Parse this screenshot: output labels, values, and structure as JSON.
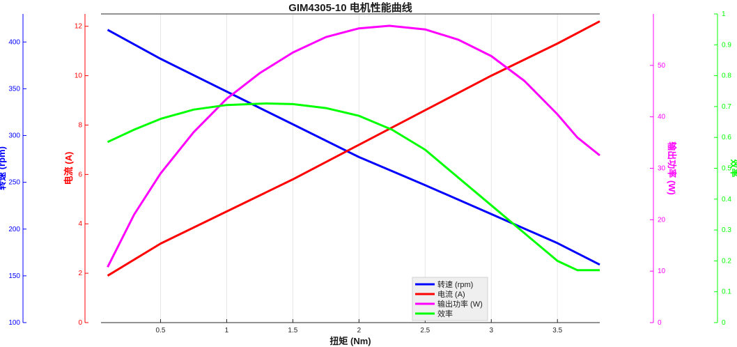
{
  "chart_data": {
    "type": "line",
    "title": "GIM4305-10 电机性能曲线",
    "xlabel": "扭矩 (Nm)",
    "xlim": [
      0.05,
      3.82
    ],
    "xticks": [
      0.5,
      1,
      1.5,
      2,
      2.5,
      3,
      3.5
    ],
    "xtick_labels": [
      "0.5",
      "1",
      "1.5",
      "2",
      "2.5",
      "3",
      "3.5"
    ],
    "grid": true,
    "legend_position": "bottom-center",
    "axes": [
      {
        "id": "speed",
        "label": "转速 (rpm)",
        "color": "#0000ff",
        "side": "left-outer",
        "ylim": [
          100,
          430
        ],
        "ticks": [
          100,
          150,
          200,
          250,
          300,
          350,
          400
        ],
        "tick_labels": [
          "100",
          "150",
          "200",
          "250",
          "300",
          "350",
          "400"
        ]
      },
      {
        "id": "current",
        "label": "电流 (A)",
        "color": "#ff0000",
        "side": "left-inner",
        "ylim": [
          0,
          12.5
        ],
        "ticks": [
          0,
          2,
          4,
          6,
          8,
          10,
          12
        ],
        "tick_labels": [
          "0",
          "2",
          "4",
          "6",
          "8",
          "10",
          "12"
        ]
      },
      {
        "id": "power",
        "label": "输出功率 (W)",
        "color": "#ff00ff",
        "side": "right-inner",
        "ylim": [
          0,
          60
        ],
        "ticks": [
          0,
          10,
          20,
          30,
          40,
          50
        ],
        "tick_labels": [
          "0",
          "10",
          "20",
          "30",
          "40",
          "50"
        ]
      },
      {
        "id": "efficiency",
        "label": "效率",
        "color": "#00ff00",
        "side": "right-outer",
        "ylim": [
          0,
          1
        ],
        "ticks": [
          0,
          0.1,
          0.2,
          0.3,
          0.4,
          0.5,
          0.6,
          0.7,
          0.8,
          0.9,
          1
        ],
        "tick_labels": [
          "0",
          "0.1",
          "0.2",
          "0.3",
          "0.4",
          "0.5",
          "0.6",
          "0.7",
          "0.8",
          "0.9",
          "1"
        ]
      }
    ],
    "series": [
      {
        "name": "转速 (rpm)",
        "axis": "speed",
        "color": "#0000ff",
        "x": [
          0.1,
          0.5,
          1.0,
          1.5,
          2.0,
          2.5,
          3.0,
          3.5,
          3.82
        ],
        "y": [
          413,
          382,
          347,
          312,
          277,
          247,
          216,
          185,
          162
        ]
      },
      {
        "name": "电流 (A)",
        "axis": "current",
        "color": "#ff0000",
        "x": [
          0.1,
          0.5,
          1.0,
          1.5,
          2.0,
          2.5,
          3.0,
          3.5,
          3.82
        ],
        "y": [
          1.9,
          3.2,
          4.5,
          5.8,
          7.2,
          8.6,
          10.0,
          11.3,
          12.2
        ]
      },
      {
        "name": "输出功率 (W)",
        "axis": "power",
        "color": "#ff00ff",
        "x": [
          0.1,
          0.3,
          0.5,
          0.75,
          1.0,
          1.25,
          1.5,
          1.75,
          2.0,
          2.23,
          2.5,
          2.75,
          3.0,
          3.25,
          3.5,
          3.65,
          3.82
        ],
        "y": [
          10.8,
          21.0,
          29.0,
          37.0,
          43.5,
          48.5,
          52.5,
          55.5,
          57.2,
          57.7,
          57.0,
          55.0,
          51.8,
          47.0,
          40.5,
          36.0,
          32.5
        ]
      },
      {
        "name": "效率",
        "axis": "efficiency",
        "color": "#00ff00",
        "x": [
          0.1,
          0.3,
          0.5,
          0.75,
          1.0,
          1.3,
          1.5,
          1.75,
          2.0,
          2.25,
          2.5,
          2.75,
          3.0,
          3.25,
          3.5,
          3.65,
          3.82
        ],
        "y": [
          0.585,
          0.625,
          0.66,
          0.69,
          0.705,
          0.71,
          0.708,
          0.695,
          0.67,
          0.625,
          0.56,
          0.47,
          0.38,
          0.29,
          0.2,
          0.17,
          0.17
        ]
      }
    ]
  }
}
